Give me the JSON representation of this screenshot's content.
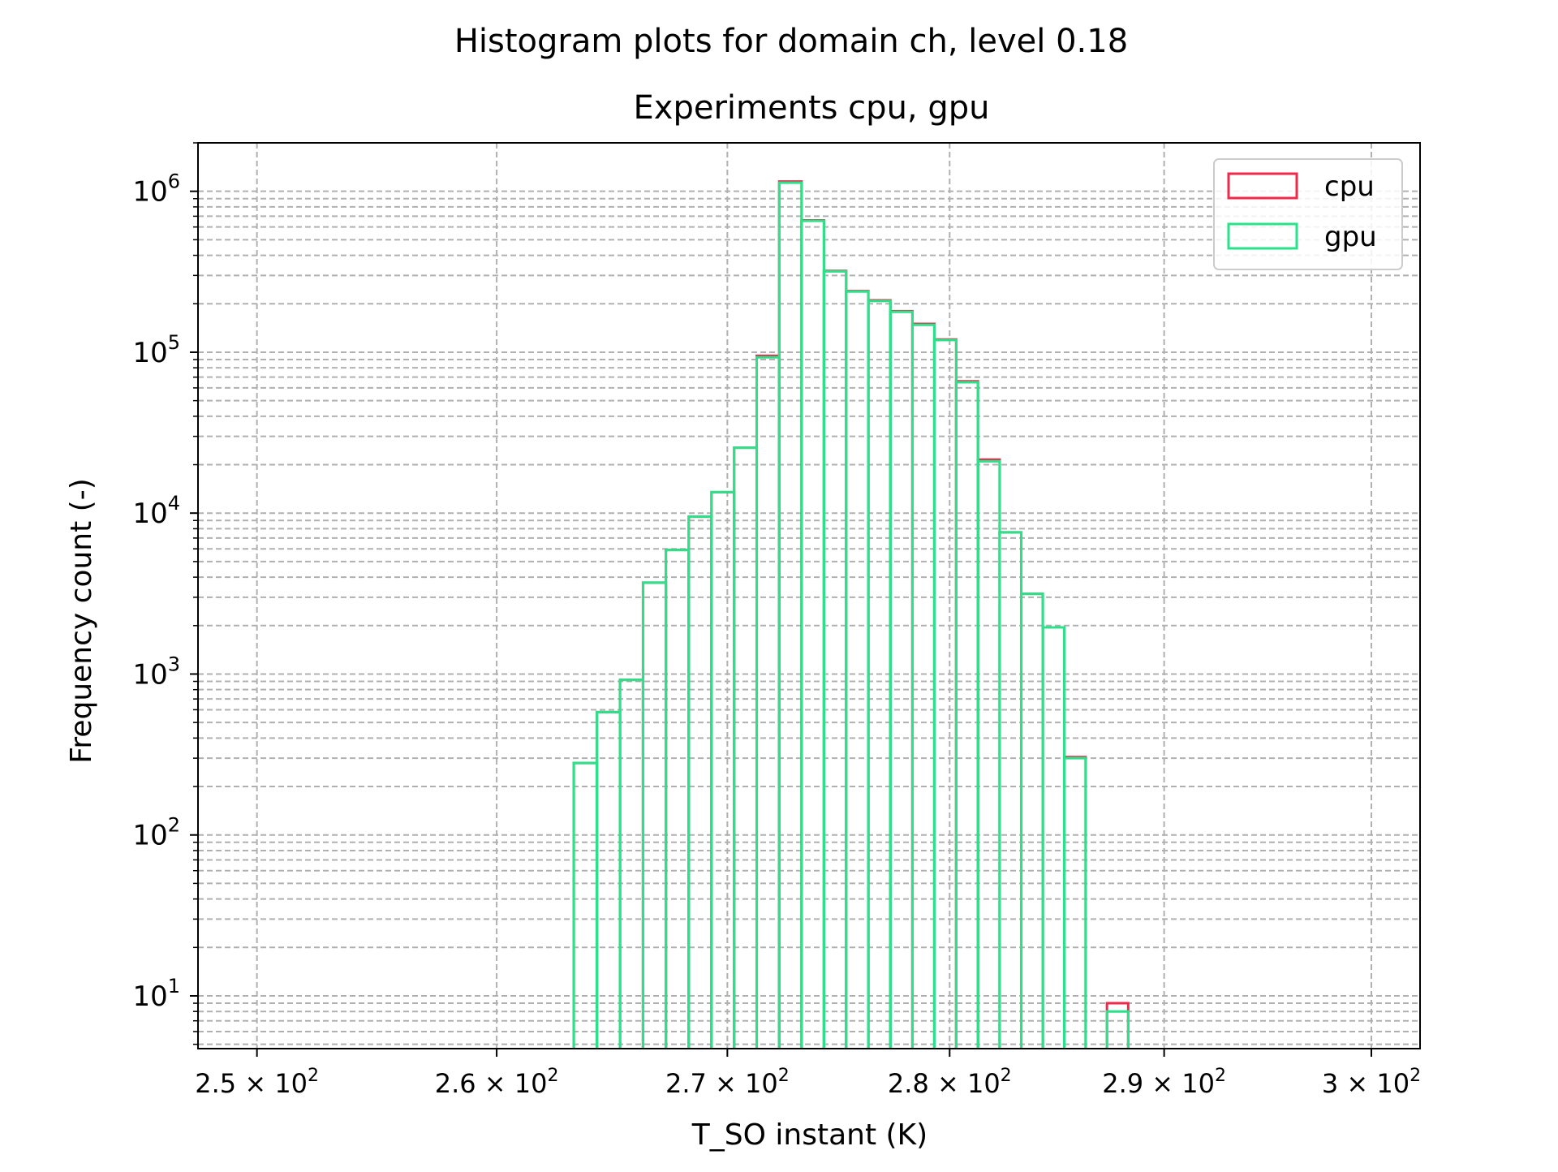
{
  "chart_data": {
    "type": "bar",
    "suptitle": "Histogram plots for domain ch, level 0.18",
    "title": "Experiments cpu, gpu",
    "xlabel": "T_SO instant (K)",
    "ylabel": "Frequency count (-)",
    "x_scale": "log",
    "y_scale": "log",
    "xlim": [
      247.6,
      302.4
    ],
    "ylim": [
      4.7,
      2000000
    ],
    "x_ticks": [
      {
        "value": 250,
        "mantissa": "2.5",
        "base": "10",
        "exp": "2"
      },
      {
        "value": 260,
        "mantissa": "2.6",
        "base": "10",
        "exp": "2"
      },
      {
        "value": 270,
        "mantissa": "2.7",
        "base": "10",
        "exp": "2"
      },
      {
        "value": 280,
        "mantissa": "2.8",
        "base": "10",
        "exp": "2"
      },
      {
        "value": 290,
        "mantissa": "2.9",
        "base": "10",
        "exp": "2"
      },
      {
        "value": 300,
        "mantissa": "3",
        "base": "10",
        "exp": "2"
      }
    ],
    "y_ticks": [
      {
        "value": 10,
        "base": "10",
        "exp": "1"
      },
      {
        "value": 100,
        "base": "10",
        "exp": "2"
      },
      {
        "value": 1000,
        "base": "10",
        "exp": "3"
      },
      {
        "value": 10000,
        "base": "10",
        "exp": "4"
      },
      {
        "value": 100000,
        "base": "10",
        "exp": "5"
      },
      {
        "value": 1000000,
        "base": "10",
        "exp": "6"
      }
    ],
    "grid": true,
    "grid_minor": true,
    "legend_position": "top-right",
    "bin_edges": [
      263.3,
      264.3,
      265.3,
      266.3,
      267.3,
      268.3,
      269.3,
      270.3,
      271.3,
      272.3,
      273.3,
      274.3,
      275.3,
      276.3,
      277.3,
      278.3,
      279.3,
      280.3,
      281.3,
      282.3,
      283.3,
      284.3,
      285.3,
      286.3,
      287.3,
      288.3
    ],
    "series": [
      {
        "name": "cpu",
        "color": "#f0284a",
        "values": [
          280,
          580,
          920,
          3700,
          5900,
          9500,
          13500,
          25500,
          95000,
          1150000,
          660000,
          320000,
          240000,
          210000,
          180000,
          150000,
          120000,
          66000,
          21500,
          7600,
          3150,
          1950,
          305,
          0,
          9
        ]
      },
      {
        "name": "gpu",
        "color": "#28e38a",
        "values": [
          280,
          580,
          920,
          3700,
          5900,
          9500,
          13500,
          25500,
          93000,
          1130000,
          655000,
          318000,
          238000,
          208000,
          178000,
          148000,
          119000,
          65000,
          21000,
          7600,
          3150,
          1950,
          300,
          0,
          8
        ]
      }
    ]
  }
}
